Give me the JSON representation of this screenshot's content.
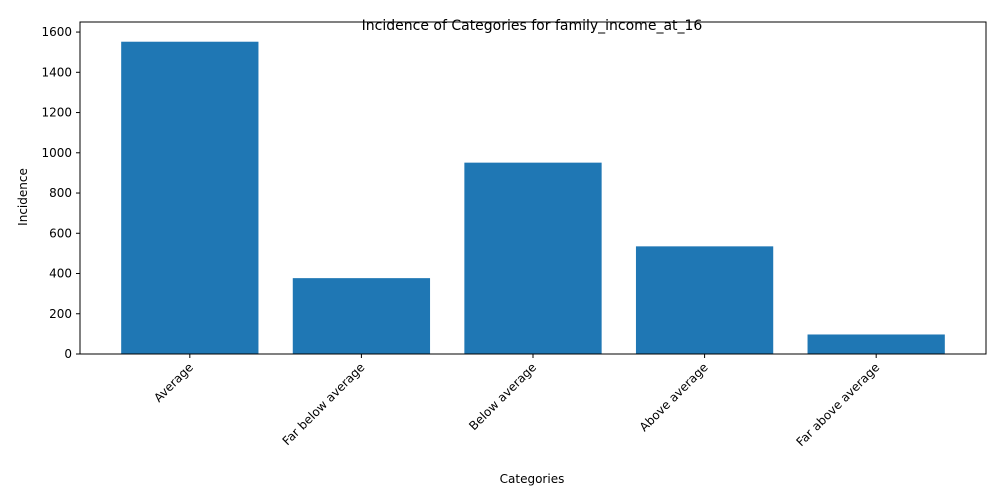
{
  "chart_data": {
    "type": "bar",
    "title": "Incidence of Categories for family_income_at_16",
    "xlabel": "Categories",
    "ylabel": "Incidence",
    "categories": [
      "Average",
      "Far below average",
      "Below average",
      "Above average",
      "Far above average"
    ],
    "values": [
      1552,
      377,
      951,
      535,
      97
    ],
    "ylim": [
      0,
      1650
    ],
    "yticks": [
      0,
      200,
      400,
      600,
      800,
      1000,
      1200,
      1400,
      1600
    ],
    "grid": false,
    "bar_color": "#1f77b4"
  }
}
